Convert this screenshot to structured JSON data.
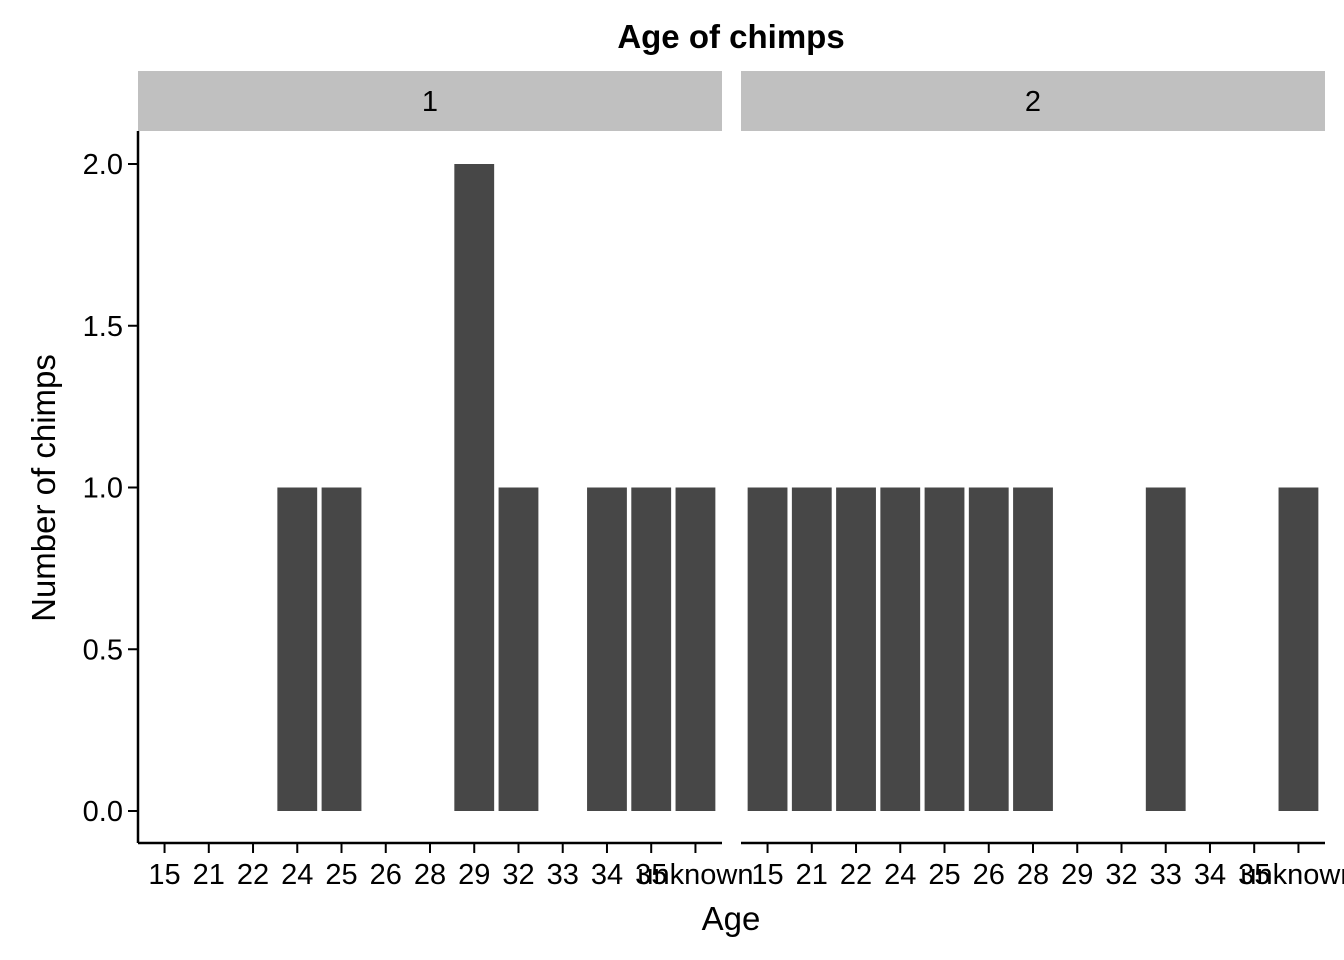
{
  "chart_data": {
    "type": "bar",
    "title": "Age of chimps",
    "xlabel": "Age",
    "ylabel": "Number of chimps",
    "ylim": [
      0,
      2
    ],
    "yticks": [
      "0.0",
      "0.5",
      "1.0",
      "1.5",
      "2.0"
    ],
    "categories": [
      "15",
      "21",
      "22",
      "24",
      "25",
      "26",
      "28",
      "29",
      "32",
      "33",
      "34",
      "35",
      "unknown"
    ],
    "grid": false,
    "bar_color": "#474747",
    "strip_color": "#c0c0c0",
    "panels": [
      {
        "label": "1",
        "values": [
          0,
          0,
          0,
          1,
          1,
          0,
          0,
          2,
          1,
          0,
          1,
          1,
          1
        ]
      },
      {
        "label": "2",
        "values": [
          1,
          1,
          1,
          1,
          1,
          1,
          1,
          0,
          0,
          1,
          0,
          0,
          1
        ]
      }
    ]
  }
}
